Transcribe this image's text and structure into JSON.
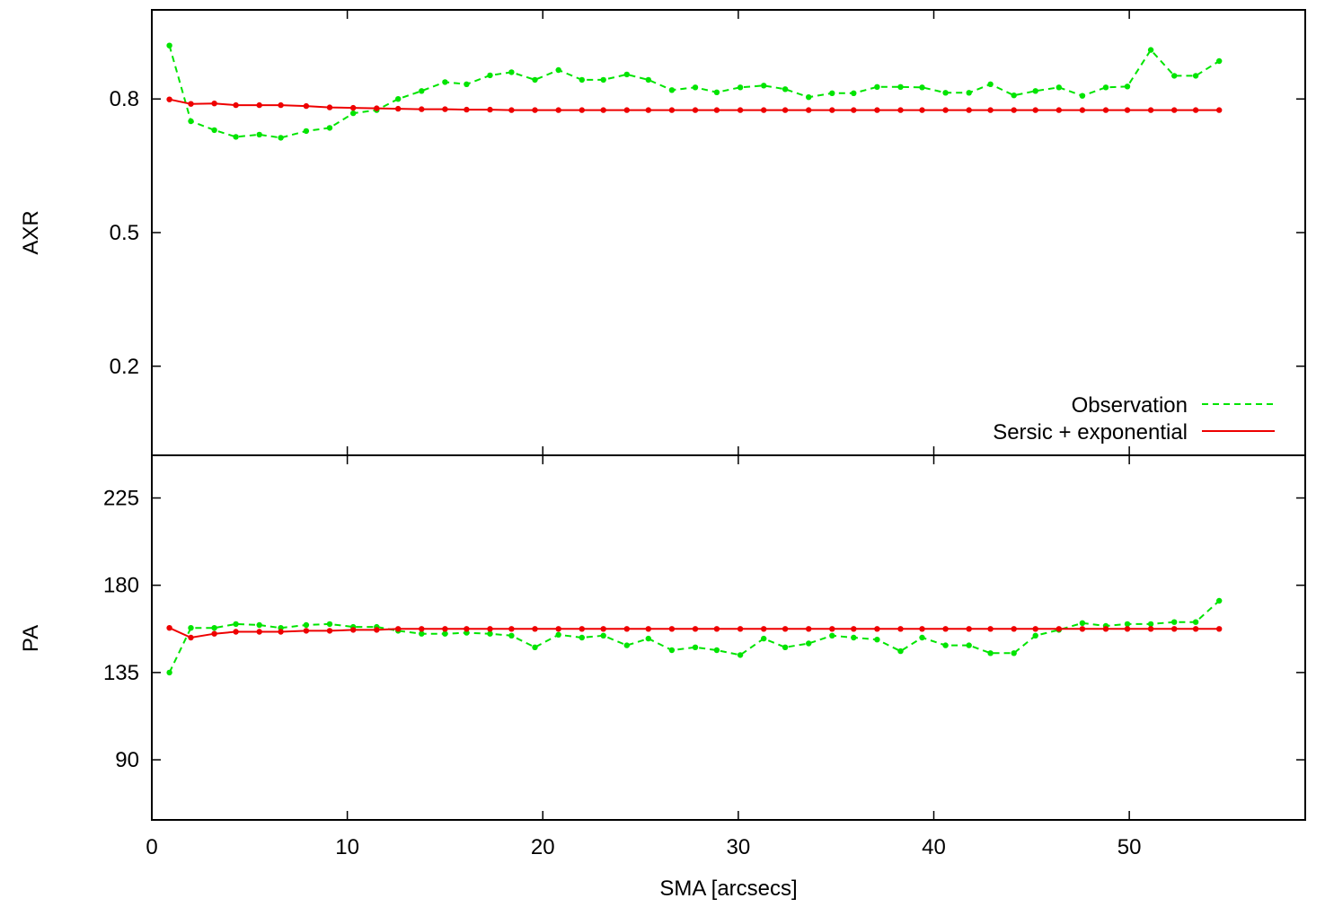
{
  "chart_data": [
    {
      "type": "line",
      "panel": "top",
      "ylabel": "AXR",
      "xlabel": "",
      "xlim": [
        0,
        59
      ],
      "ylim": [
        0,
        1.0
      ],
      "xticks": [
        0,
        10,
        20,
        30,
        40,
        50
      ],
      "yticks": [
        0.2,
        0.5,
        0.8
      ],
      "ytick_labels": [
        "0.2",
        "0.5",
        "0.8"
      ],
      "legend": {
        "placement": "bottom-right"
      },
      "series": [
        {
          "name": "Observation",
          "color": "#00e400",
          "style": "dashed",
          "x": [
            0.9,
            2.0,
            3.2,
            4.3,
            5.5,
            6.6,
            7.9,
            9.1,
            10.3,
            11.5,
            12.6,
            13.8,
            15.0,
            16.1,
            17.3,
            18.4,
            19.6,
            20.8,
            22.0,
            23.1,
            24.3,
            25.4,
            26.6,
            27.8,
            28.9,
            30.1,
            31.3,
            32.4,
            33.6,
            34.8,
            35.9,
            37.1,
            38.3,
            39.4,
            40.6,
            41.8,
            42.9,
            44.1,
            45.2,
            46.4,
            47.6,
            48.8,
            49.9,
            51.1,
            52.3,
            53.4,
            54.6
          ],
          "y": [
            0.92,
            0.75,
            0.73,
            0.715,
            0.72,
            0.713,
            0.728,
            0.735,
            0.768,
            0.775,
            0.8,
            0.818,
            0.838,
            0.833,
            0.853,
            0.86,
            0.843,
            0.865,
            0.843,
            0.843,
            0.855,
            0.843,
            0.82,
            0.826,
            0.815,
            0.826,
            0.83,
            0.822,
            0.804,
            0.813,
            0.813,
            0.827,
            0.827,
            0.826,
            0.814,
            0.814,
            0.833,
            0.808,
            0.818,
            0.826,
            0.807,
            0.826,
            0.828,
            0.91,
            0.852,
            0.852,
            0.885
          ]
        },
        {
          "name": "Sersic + exponential",
          "color": "#ee0000",
          "style": "solid",
          "x": [
            0.9,
            2.0,
            3.2,
            4.3,
            5.5,
            6.6,
            7.9,
            9.1,
            10.3,
            11.5,
            12.6,
            13.8,
            15.0,
            16.1,
            17.3,
            18.4,
            19.6,
            20.8,
            22.0,
            23.1,
            24.3,
            25.4,
            26.6,
            27.8,
            28.9,
            30.1,
            31.3,
            32.4,
            33.6,
            34.8,
            35.9,
            37.1,
            38.3,
            39.4,
            40.6,
            41.8,
            42.9,
            44.1,
            45.2,
            46.4,
            47.6,
            48.8,
            49.9,
            51.1,
            52.3,
            53.4,
            54.6
          ],
          "y": [
            0.799,
            0.789,
            0.79,
            0.786,
            0.786,
            0.786,
            0.784,
            0.781,
            0.78,
            0.779,
            0.778,
            0.777,
            0.777,
            0.776,
            0.776,
            0.775,
            0.775,
            0.775,
            0.775,
            0.775,
            0.775,
            0.775,
            0.775,
            0.775,
            0.775,
            0.775,
            0.775,
            0.775,
            0.775,
            0.775,
            0.775,
            0.775,
            0.775,
            0.775,
            0.775,
            0.775,
            0.775,
            0.775,
            0.775,
            0.775,
            0.775,
            0.775,
            0.775,
            0.775,
            0.775,
            0.775,
            0.775
          ]
        }
      ]
    },
    {
      "type": "line",
      "panel": "bottom",
      "ylabel": "PA",
      "xlabel": "SMA [arcsecs]",
      "xlim": [
        0,
        59
      ],
      "ylim": [
        59,
        247
      ],
      "xticks": [
        0,
        10,
        20,
        30,
        40,
        50
      ],
      "xtick_labels": [
        "0",
        "10",
        "20",
        "30",
        "40",
        "50"
      ],
      "yticks": [
        90,
        135,
        180,
        225
      ],
      "ytick_labels": [
        "90",
        "135",
        "180",
        "225"
      ],
      "series": [
        {
          "name": "Observation",
          "color": "#00e400",
          "style": "dashed",
          "x": [
            0.9,
            2.0,
            3.2,
            4.3,
            5.5,
            6.6,
            7.9,
            9.1,
            10.3,
            11.5,
            12.6,
            13.8,
            15.0,
            16.1,
            17.3,
            18.4,
            19.6,
            20.8,
            22.0,
            23.1,
            24.3,
            25.4,
            26.6,
            27.8,
            28.9,
            30.1,
            31.3,
            32.4,
            33.6,
            34.8,
            35.9,
            37.1,
            38.3,
            39.4,
            40.6,
            41.8,
            42.9,
            44.1,
            45.2,
            46.4,
            47.6,
            48.8,
            49.9,
            51.1,
            52.3,
            53.4,
            54.6
          ],
          "y": [
            135,
            158,
            158,
            160,
            159.5,
            158,
            159.5,
            160,
            158.5,
            158.5,
            156.5,
            155,
            155,
            155.5,
            155,
            154,
            148,
            154.5,
            153,
            154,
            149,
            152.5,
            146.5,
            148,
            146.5,
            144,
            152.5,
            148,
            150,
            154,
            153,
            152,
            146,
            153,
            149,
            149,
            145,
            145,
            154,
            157,
            160.5,
            159,
            160,
            160,
            161,
            161,
            172
          ]
        },
        {
          "name": "Sersic + exponential",
          "color": "#ee0000",
          "style": "solid",
          "x": [
            0.9,
            2.0,
            3.2,
            4.3,
            5.5,
            6.6,
            7.9,
            9.1,
            10.3,
            11.5,
            12.6,
            13.8,
            15.0,
            16.1,
            17.3,
            18.4,
            19.6,
            20.8,
            22.0,
            23.1,
            24.3,
            25.4,
            26.6,
            27.8,
            28.9,
            30.1,
            31.3,
            32.4,
            33.6,
            34.8,
            35.9,
            37.1,
            38.3,
            39.4,
            40.6,
            41.8,
            42.9,
            44.1,
            45.2,
            46.4,
            47.6,
            48.8,
            49.9,
            51.1,
            52.3,
            53.4,
            54.6
          ],
          "y": [
            158,
            153,
            155,
            156,
            156,
            156,
            156.5,
            156.5,
            157,
            157,
            157.5,
            157.5,
            157.5,
            157.5,
            157.5,
            157.5,
            157.5,
            157.5,
            157.5,
            157.5,
            157.5,
            157.5,
            157.5,
            157.5,
            157.5,
            157.5,
            157.5,
            157.5,
            157.5,
            157.5,
            157.5,
            157.5,
            157.5,
            157.5,
            157.5,
            157.5,
            157.5,
            157.5,
            157.5,
            157.5,
            157.5,
            157.5,
            157.5,
            157.5,
            157.5,
            157.5,
            157.5
          ]
        }
      ]
    }
  ]
}
